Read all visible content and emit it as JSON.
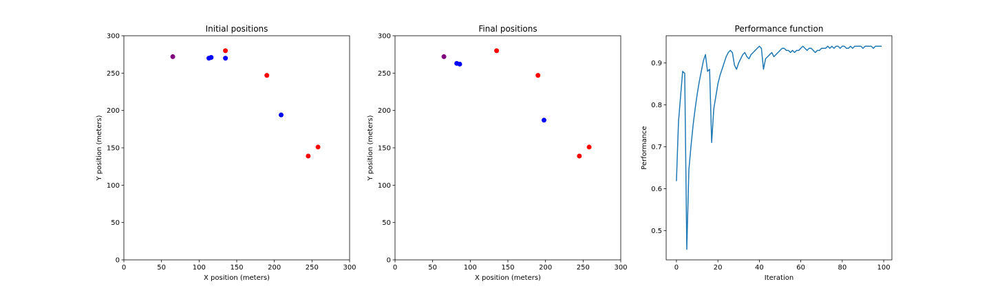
{
  "chart_data": [
    {
      "type": "scatter",
      "title": "Initial positions",
      "xlabel": "X position (meters)",
      "ylabel": "Y position (meters)",
      "xlim": [
        0,
        300
      ],
      "ylim": [
        0,
        300
      ],
      "xticks": [
        0,
        50,
        100,
        150,
        200,
        250,
        300
      ],
      "yticks": [
        0,
        50,
        100,
        150,
        200,
        250,
        300
      ],
      "grid": false,
      "points": [
        {
          "x": 65,
          "y": 272,
          "color": "#800080"
        },
        {
          "x": 113,
          "y": 270,
          "color": "#0000ff"
        },
        {
          "x": 116,
          "y": 271,
          "color": "#0000ff"
        },
        {
          "x": 135,
          "y": 270,
          "color": "#0000ff"
        },
        {
          "x": 135,
          "y": 280,
          "color": "#ff0000"
        },
        {
          "x": 190,
          "y": 247,
          "color": "#ff0000"
        },
        {
          "x": 209,
          "y": 194,
          "color": "#0000ff"
        },
        {
          "x": 245,
          "y": 139,
          "color": "#ff0000"
        },
        {
          "x": 258,
          "y": 151,
          "color": "#ff0000"
        }
      ]
    },
    {
      "type": "scatter",
      "title": "Final positions",
      "xlabel": "X position (meters)",
      "ylabel": "Y position (meters)",
      "xlim": [
        0,
        300
      ],
      "ylim": [
        0,
        300
      ],
      "xticks": [
        0,
        50,
        100,
        150,
        200,
        250,
        300
      ],
      "yticks": [
        0,
        50,
        100,
        150,
        200,
        250,
        300
      ],
      "grid": false,
      "points": [
        {
          "x": 65,
          "y": 272,
          "color": "#800080"
        },
        {
          "x": 82,
          "y": 263,
          "color": "#0000ff"
        },
        {
          "x": 86,
          "y": 262,
          "color": "#0000ff"
        },
        {
          "x": 135,
          "y": 280,
          "color": "#ff0000"
        },
        {
          "x": 190,
          "y": 247,
          "color": "#ff0000"
        },
        {
          "x": 198,
          "y": 187,
          "color": "#0000ff"
        },
        {
          "x": 245,
          "y": 139,
          "color": "#ff0000"
        },
        {
          "x": 258,
          "y": 151,
          "color": "#ff0000"
        }
      ]
    },
    {
      "type": "line",
      "title": "Performance function",
      "xlabel": "Iteration",
      "ylabel": "Performance",
      "xlim": [
        -4.95,
        103.95
      ],
      "ylim": [
        0.43,
        0.965
      ],
      "xticks": [
        0,
        20,
        40,
        60,
        80,
        100
      ],
      "yticks": [
        0.5,
        0.6,
        0.7,
        0.8,
        0.9
      ],
      "grid": false,
      "series": [
        {
          "color": "#1f77b4",
          "x": [
            0,
            1,
            2,
            3,
            4,
            5,
            6,
            7,
            8,
            9,
            10,
            11,
            12,
            13,
            14,
            15,
            16,
            17,
            18,
            19,
            20,
            21,
            22,
            23,
            24,
            25,
            26,
            27,
            28,
            29,
            30,
            31,
            32,
            33,
            34,
            35,
            36,
            37,
            38,
            39,
            40,
            41,
            42,
            43,
            44,
            45,
            46,
            47,
            48,
            49,
            50,
            51,
            52,
            53,
            54,
            55,
            56,
            57,
            58,
            59,
            60,
            61,
            62,
            63,
            64,
            65,
            66,
            67,
            68,
            69,
            70,
            71,
            72,
            73,
            74,
            75,
            76,
            77,
            78,
            79,
            80,
            81,
            82,
            83,
            84,
            85,
            86,
            87,
            88,
            89,
            90,
            91,
            92,
            93,
            94,
            95,
            96,
            97,
            98,
            99
          ],
          "y": [
            0.618,
            0.76,
            0.82,
            0.88,
            0.875,
            0.455,
            0.645,
            0.7,
            0.75,
            0.79,
            0.825,
            0.855,
            0.88,
            0.905,
            0.92,
            0.88,
            0.885,
            0.71,
            0.79,
            0.82,
            0.85,
            0.87,
            0.885,
            0.9,
            0.915,
            0.925,
            0.93,
            0.925,
            0.895,
            0.885,
            0.9,
            0.91,
            0.92,
            0.925,
            0.915,
            0.91,
            0.92,
            0.925,
            0.93,
            0.935,
            0.94,
            0.935,
            0.885,
            0.91,
            0.915,
            0.92,
            0.925,
            0.915,
            0.92,
            0.925,
            0.93,
            0.935,
            0.935,
            0.93,
            0.93,
            0.925,
            0.93,
            0.925,
            0.93,
            0.93,
            0.935,
            0.94,
            0.935,
            0.93,
            0.935,
            0.935,
            0.93,
            0.925,
            0.93,
            0.93,
            0.935,
            0.935,
            0.935,
            0.94,
            0.935,
            0.94,
            0.935,
            0.94,
            0.94,
            0.935,
            0.94,
            0.94,
            0.935,
            0.935,
            0.94,
            0.935,
            0.94,
            0.94,
            0.94,
            0.94,
            0.935,
            0.94,
            0.94,
            0.94,
            0.94,
            0.935,
            0.94,
            0.94,
            0.94,
            0.94
          ]
        }
      ]
    }
  ]
}
